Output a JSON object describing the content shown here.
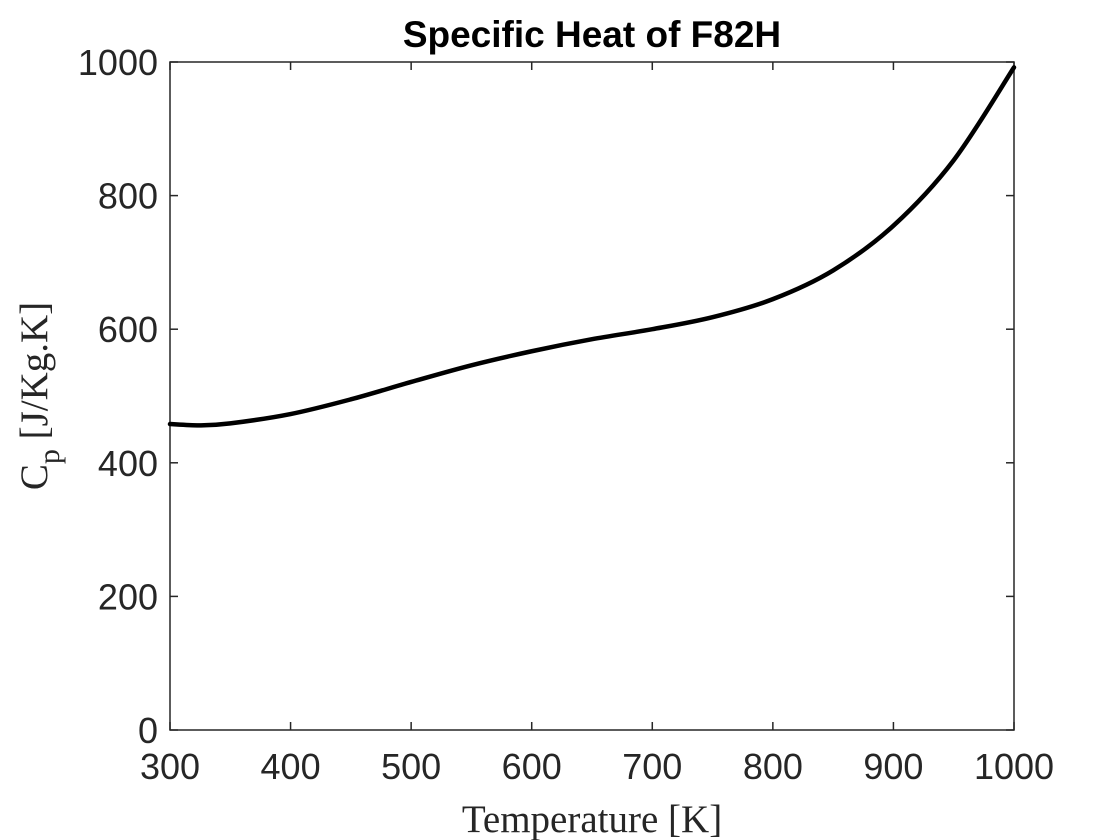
{
  "chart_data": {
    "type": "line",
    "title": "Specific Heat of F82H",
    "xlabel": "Temperature [K]",
    "ylabel": {
      "main": "C",
      "subscript": "p",
      "units": " [J/Kg.K]"
    },
    "xlim": [
      300,
      1000
    ],
    "ylim": [
      0,
      1000
    ],
    "xticks": [
      "300",
      "400",
      "500",
      "600",
      "700",
      "800",
      "900",
      "1000"
    ],
    "yticks": [
      "0",
      "200",
      "400",
      "600",
      "800",
      "1000"
    ],
    "grid": false,
    "line_color": "#000000",
    "series": [
      {
        "x": [
          300,
          325,
          350,
          400,
          450,
          500,
          550,
          600,
          650,
          700,
          750,
          800,
          850,
          900,
          950,
          1000
        ],
        "values": [
          458,
          456,
          459,
          473,
          495,
          521,
          546,
          567,
          585,
          600,
          618,
          645,
          688,
          755,
          853,
          992
        ]
      }
    ]
  }
}
